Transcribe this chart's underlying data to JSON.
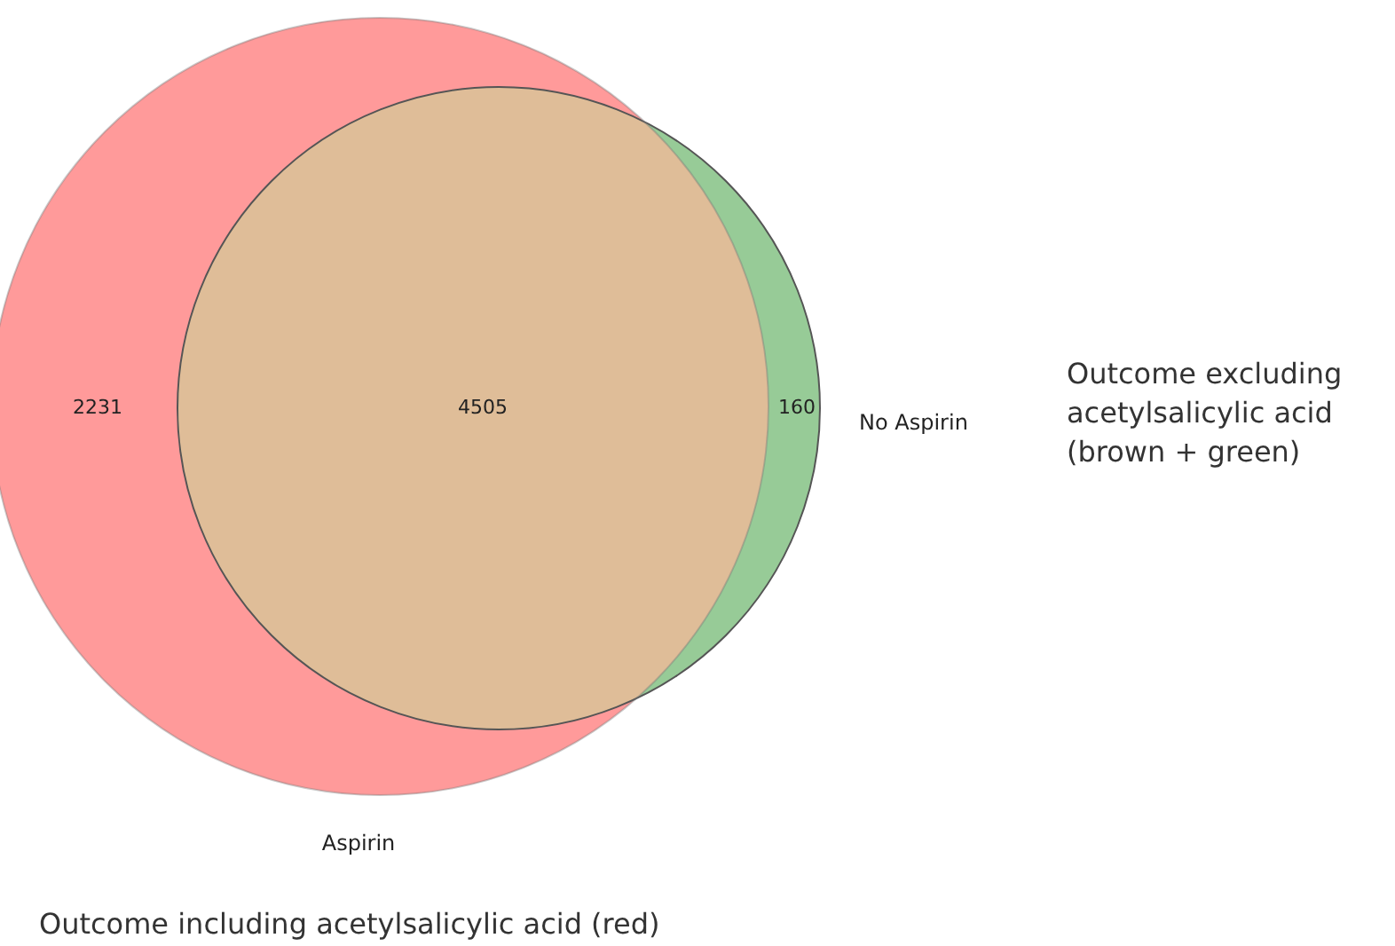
{
  "chart_data": {
    "type": "other",
    "categories": [
      null,
      null,
      null
    ],
    "values": [
      2231,
      4505,
      160
    ],
    "data_labels": true,
    "colors": [
      "#ff9a9a",
      "#dfbd98",
      "#97cb97"
    ],
    "annotations": [
      "Aspirin",
      "No Aspirin",
      "Outcome excluding acetylsalicylic acid (brown + green)",
      "Outcome including acetylsalicylic acid (red)"
    ]
  }
}
